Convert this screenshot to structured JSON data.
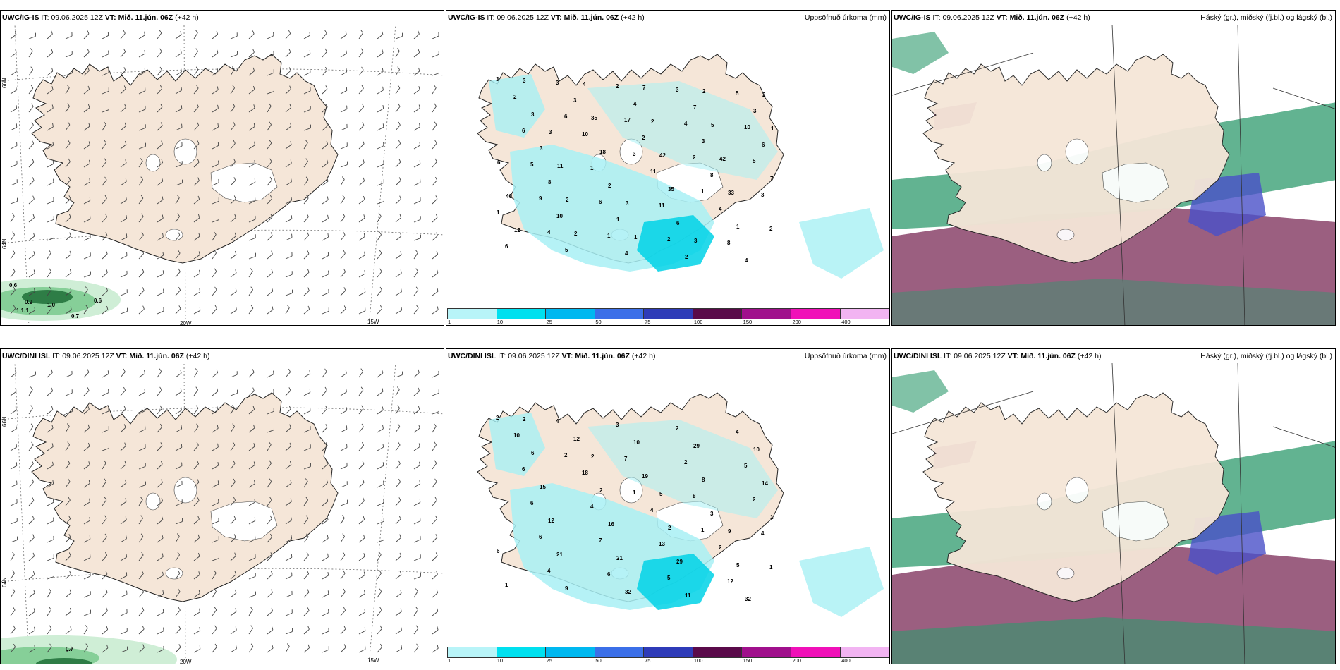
{
  "rows": [
    {
      "model": "UWC/IG-IS",
      "it_label": "IT:",
      "it_value": "09.06.2025 12Z",
      "vt_label": "VT: Mið. 11.jún. 06Z",
      "lead": "(+42 h)",
      "wind_values": [
        "0.6",
        "0.9",
        "1.0",
        "0.6",
        "1.1.1",
        "0.7"
      ],
      "precip_numbers": [
        "3",
        "6",
        "3",
        "1",
        "2",
        "3",
        "17",
        "2",
        "3",
        "4",
        "2",
        "4",
        "5",
        "9",
        "1",
        "3",
        "10",
        "5",
        "6",
        "2",
        "5",
        "6",
        "1",
        "11",
        "8",
        "2",
        "10",
        "11",
        "4",
        "6",
        "3",
        "2",
        "8",
        "1",
        "5",
        "4",
        "3",
        "7",
        "10",
        "4",
        "7",
        "6",
        "8",
        "1",
        "2",
        "3",
        "3",
        "2",
        "6",
        "4",
        "3",
        "18",
        "35",
        "1",
        "3",
        "35",
        "42",
        "33",
        "12",
        "4",
        "2",
        "42",
        "40",
        "2",
        "7",
        "5",
        "6",
        "2",
        "1",
        "2",
        "1",
        "11",
        "3",
        "3",
        "2",
        "3"
      ],
      "cloud_title": "Háský (gr.), miðský (fj.bl.) og lágský (bl.)"
    },
    {
      "model": "UWC/DINI ISL",
      "it_label": "IT:",
      "it_value": "09.06.2025 12Z",
      "vt_label": "VT: Mið. 11.jún. 06Z",
      "lead": "(+42 h)",
      "wind_values": [
        "0.7"
      ],
      "precip_numbers": [
        "2",
        "2",
        "1",
        "1",
        "1",
        "4",
        "7",
        "8",
        "4",
        "4",
        "3",
        "2",
        "2",
        "6",
        "6",
        "2",
        "5",
        "6",
        "7",
        "5",
        "4",
        "6",
        "4",
        "13",
        "12",
        "10",
        "18",
        "4",
        "2",
        "1",
        "12",
        "19",
        "3",
        "6",
        "9",
        "10",
        "8",
        "1",
        "21",
        "32",
        "29",
        "14",
        "12",
        "21",
        "11",
        "10",
        "15",
        "16",
        "29",
        "32",
        "6",
        "2",
        "2",
        "5",
        "2",
        "2",
        "5",
        "9"
      ],
      "cloud_title": "Háský (gr.), miðský (fj.bl.) og lágský (bl.)"
    }
  ],
  "precip_title": "Uppsöfnuð úrkoma (mm)",
  "lat_labels": [
    "66N",
    "64N"
  ],
  "lon_labels": [
    "25W",
    "20W",
    "15W"
  ],
  "colorbar": {
    "labels": [
      "1",
      "10",
      "25",
      "50",
      "75",
      "100",
      "150",
      "200",
      "400"
    ],
    "colors": [
      "#b8f4f8",
      "#00e0ef",
      "#00b8f0",
      "#3b6fe8",
      "#2e3bb8",
      "#5a0a4a",
      "#a0108c",
      "#f010b8",
      "#f2b4f2"
    ]
  },
  "colors": {
    "land": "#f5e6d8",
    "glacier": "#ffffff",
    "precip_light": "#a8f0f4",
    "precip_mid": "#00d2e6",
    "wind_green": "#2e7d46",
    "cloud_high": "#2d9a6c",
    "cloud_mid": "#7a2a55",
    "cloud_low": "#4a50c8"
  }
}
